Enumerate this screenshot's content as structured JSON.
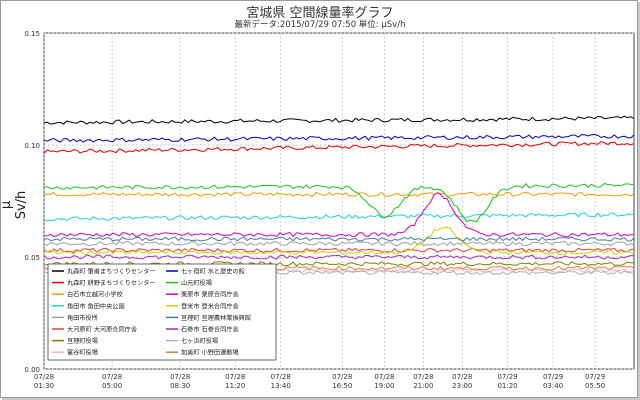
{
  "header": {
    "title": "宮城県 空間線量率グラフ",
    "subtitle": "最新データ:2015/07/29 07:50 単位: μSv/h"
  },
  "chart_data": {
    "type": "line",
    "title": "宮城県 空間線量率グラフ",
    "subtitle": "最新データ:2015/07/29 07:50 単位: μSv/h",
    "ylabel": "μ Sv/h",
    "xlabel": "",
    "ylim": [
      0.0,
      0.15
    ],
    "yticks": [
      {
        "value": 0.0,
        "label": "0.00"
      },
      {
        "value": 0.05,
        "label": "0.05"
      },
      {
        "value": 0.1,
        "label": "0.10"
      },
      {
        "value": 0.15,
        "label": "0.15"
      }
    ],
    "xlim": [
      0,
      30.33
    ],
    "xticks": [
      {
        "t": 0,
        "date": "07/28",
        "time": "01:30"
      },
      {
        "t": 3.5,
        "date": "07/28",
        "time": "05:00"
      },
      {
        "t": 7,
        "date": "07/28",
        "time": "08:30"
      },
      {
        "t": 9.83,
        "date": "07/28",
        "time": "11:20"
      },
      {
        "t": 12.17,
        "date": "07/28",
        "time": "13:40"
      },
      {
        "t": 15.33,
        "date": "07/28",
        "time": "16:50"
      },
      {
        "t": 17.5,
        "date": "07/28",
        "time": "19:00"
      },
      {
        "t": 19.5,
        "date": "07/28",
        "time": "21:00"
      },
      {
        "t": 21.5,
        "date": "07/28",
        "time": "23:00"
      },
      {
        "t": 23.83,
        "date": "07/29",
        "time": "01:20"
      },
      {
        "t": 26.17,
        "date": "07/29",
        "time": "03:40"
      },
      {
        "t": 28.33,
        "date": "07/29",
        "time": "05:50"
      }
    ],
    "grid": true,
    "legend_position": "bottom-left",
    "series": [
      {
        "name": "丸森町 筆甫まちづくりセンター",
        "color": "#000000",
        "base": 0.11,
        "trend": 0.002
      },
      {
        "name": "丸森町 耕野まちづくりセンター",
        "color": "#e00000",
        "base": 0.097,
        "trend": 0.004
      },
      {
        "name": "白石市立越河小学校",
        "color": "#f0a000",
        "base": 0.078,
        "trend": 0.0
      },
      {
        "name": "角田市 角田中央公園",
        "color": "#20d0e0",
        "base": 0.067,
        "trend": 0.002
      },
      {
        "name": "角田市役所",
        "color": "#a0a0a0",
        "base": 0.056,
        "trend": 0.0
      },
      {
        "name": "大河原町 大河原合同庁舎",
        "color": "#e04040",
        "base": 0.053,
        "trend": 0.0
      },
      {
        "name": "亘理町役場",
        "color": "#808000",
        "base": 0.047,
        "trend": 0.0
      },
      {
        "name": "富谷町役場",
        "color": "#f0b0d0",
        "base": 0.044,
        "trend": 0.0
      },
      {
        "name": "七ヶ宿町 水と歴史の館",
        "color": "#0000c0",
        "base": 0.102,
        "trend": 0.002
      },
      {
        "name": "山元町役場",
        "color": "#20c020",
        "base": 0.081,
        "trend": 0.001
      },
      {
        "name": "栗原市 栗原合同庁舎",
        "color": "#e000c0",
        "base": 0.06,
        "trend": 0.0
      },
      {
        "name": "登米市 登米合同庁舎",
        "color": "#d0d000",
        "base": 0.052,
        "trend": 0.0
      },
      {
        "name": "亘理町 亘理農林業振興館",
        "color": "#4080a0",
        "base": 0.058,
        "trend": 0.0
      },
      {
        "name": "石巻市 石巻合同庁舎",
        "color": "#a030c0",
        "base": 0.05,
        "trend": 0.0
      },
      {
        "name": "七ヶ浜町役場",
        "color": "#b0b0b0",
        "base": 0.043,
        "trend": 0.0
      },
      {
        "name": "加美町 小野田運動場",
        "color": "#e08040",
        "base": 0.045,
        "trend": 0.0
      }
    ],
    "events": [
      {
        "series": "栗原市 栗原合同庁舎",
        "peak_t": 20.3,
        "peak_value": 0.078
      },
      {
        "series": "山元町役場",
        "peak_t": 17.5,
        "peak_value": 0.068
      },
      {
        "series": "山元町役場",
        "peak_t": 22.0,
        "peak_value": 0.065
      },
      {
        "series": "登米市 登米合同庁舎",
        "peak_t": 20.5,
        "peak_value": 0.063
      }
    ]
  }
}
